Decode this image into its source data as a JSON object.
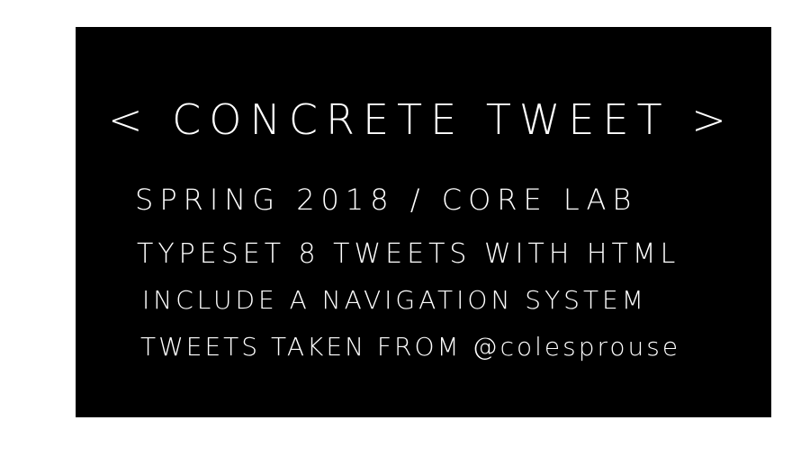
{
  "board": {
    "background": "#000000",
    "text_color": "#ffffff",
    "title": "< CONCRETE TWEET >",
    "lines": [
      "SPRING 2018 / CORE LAB",
      "TYPESET 8 TWEETS WITH HTML",
      "INCLUDE A NAVIGATION SYSTEM",
      "TWEETS TAKEN FROM @colesprouse"
    ]
  }
}
